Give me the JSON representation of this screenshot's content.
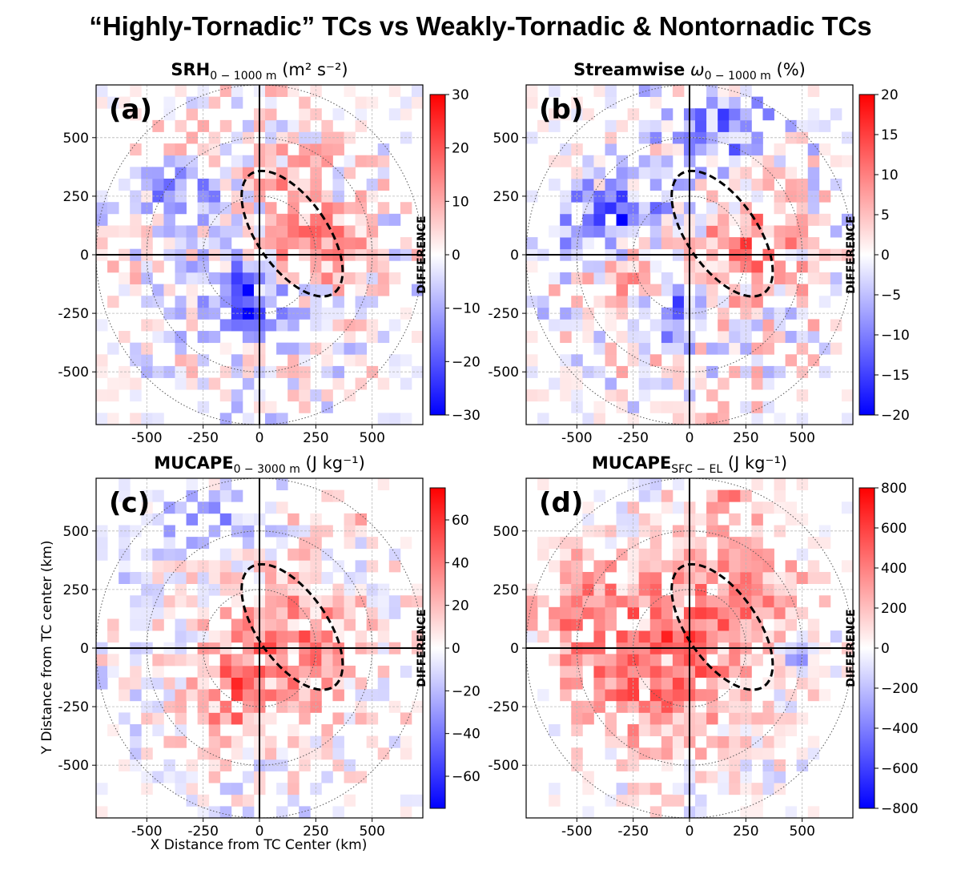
{
  "figure": {
    "title": "“Highly-Tornadic” TCs vs Weakly-Tornadic & Nontornadic TCs",
    "xlabel": "X Distance from TC Center (km)",
    "ylabel": "Y Distance from TC center (km)"
  },
  "chart_data": [
    {
      "type": "heatmap",
      "panel_label": "(a)",
      "title_main": "SRH",
      "title_sub": "0 − 1000 m",
      "title_units": " (m² s⁻²)",
      "colorbar_label": "DIFFERENCE",
      "clim": [
        -30,
        30
      ],
      "colorbar_ticks": [
        -30,
        -20,
        -10,
        0,
        10,
        20,
        30
      ],
      "xlim": [
        -725,
        725
      ],
      "ylim": [
        -725,
        725
      ],
      "xticks": [
        -500,
        -250,
        0,
        250,
        500
      ],
      "yticks": [
        -500,
        -250,
        0,
        250,
        500
      ],
      "grid_spacing_km": 50,
      "dominant_pattern": "negative values south-west of center (near -15 to -25), positive values east of center (10 to 20), mixed elsewhere",
      "dashed_ellipse": {
        "center_km": [
          145,
          90
        ],
        "semi_axes_km": [
          155,
          310
        ],
        "rotation_deg": 35
      },
      "range_rings_km": [
        250,
        500,
        725
      ],
      "colormap": "bwr"
    },
    {
      "type": "heatmap",
      "panel_label": "(b)",
      "title_main": "Streamwise",
      "title_sym": "ω",
      "title_sub": "0 − 1000 m",
      "title_units": " (%)",
      "colorbar_label": "DIFFERENCE",
      "clim": [
        -20,
        20
      ],
      "colorbar_ticks": [
        -20,
        -15,
        -10,
        -5,
        0,
        5,
        10,
        15,
        20
      ],
      "xlim": [
        -725,
        725
      ],
      "ylim": [
        -725,
        725
      ],
      "xticks": [
        -500,
        -250,
        0,
        250,
        500
      ],
      "yticks": [
        -500,
        -250,
        0,
        250,
        500
      ],
      "grid_spacing_km": 50,
      "dominant_pattern": "negative values to the west and north (near -10 to -20), positive values east of center (5 to 10)",
      "dashed_ellipse": {
        "center_km": [
          145,
          90
        ],
        "semi_axes_km": [
          155,
          310
        ],
        "rotation_deg": 35
      },
      "range_rings_km": [
        250,
        500,
        725
      ],
      "colormap": "bwr"
    },
    {
      "type": "heatmap",
      "panel_label": "(c)",
      "title_main": "MUCAPE",
      "title_sub": "0 − 3000 m",
      "title_units": " (J kg⁻¹)",
      "colorbar_label": "DIFFERENCE",
      "clim": [
        -75,
        75
      ],
      "colorbar_ticks": [
        -60,
        -40,
        -20,
        0,
        20,
        40,
        60
      ],
      "xlim": [
        -725,
        725
      ],
      "ylim": [
        -725,
        725
      ],
      "xticks": [
        -500,
        -250,
        0,
        250,
        500
      ],
      "yticks": [
        -500,
        -250,
        0,
        250,
        500
      ],
      "grid_spacing_km": 50,
      "dominant_pattern": "positive values across center and east (20 to 60), weakly negative to the north-west",
      "dashed_ellipse": {
        "center_km": [
          145,
          90
        ],
        "semi_axes_km": [
          155,
          310
        ],
        "rotation_deg": 35
      },
      "range_rings_km": [
        250,
        500,
        725
      ],
      "colormap": "bwr"
    },
    {
      "type": "heatmap",
      "panel_label": "(d)",
      "title_main": "MUCAPE",
      "title_sub": "SFC − EL",
      "title_units": " (J kg⁻¹)",
      "colorbar_label": "DIFFERENCE",
      "clim": [
        -800,
        800
      ],
      "colorbar_ticks": [
        -800,
        -600,
        -400,
        -200,
        0,
        200,
        400,
        600,
        800
      ],
      "xlim": [
        -725,
        725
      ],
      "ylim": [
        -725,
        725
      ],
      "xticks": [
        -500,
        -250,
        0,
        250,
        500
      ],
      "yticks": [
        -500,
        -250,
        0,
        250,
        500
      ],
      "grid_spacing_km": 50,
      "dominant_pattern": "positive values nearly everywhere (200 to 700), strongest south-west of center",
      "dashed_ellipse": {
        "center_km": [
          145,
          90
        ],
        "semi_axes_km": [
          155,
          310
        ],
        "rotation_deg": 35
      },
      "range_rings_km": [
        250,
        500,
        725
      ],
      "colormap": "bwr"
    }
  ]
}
